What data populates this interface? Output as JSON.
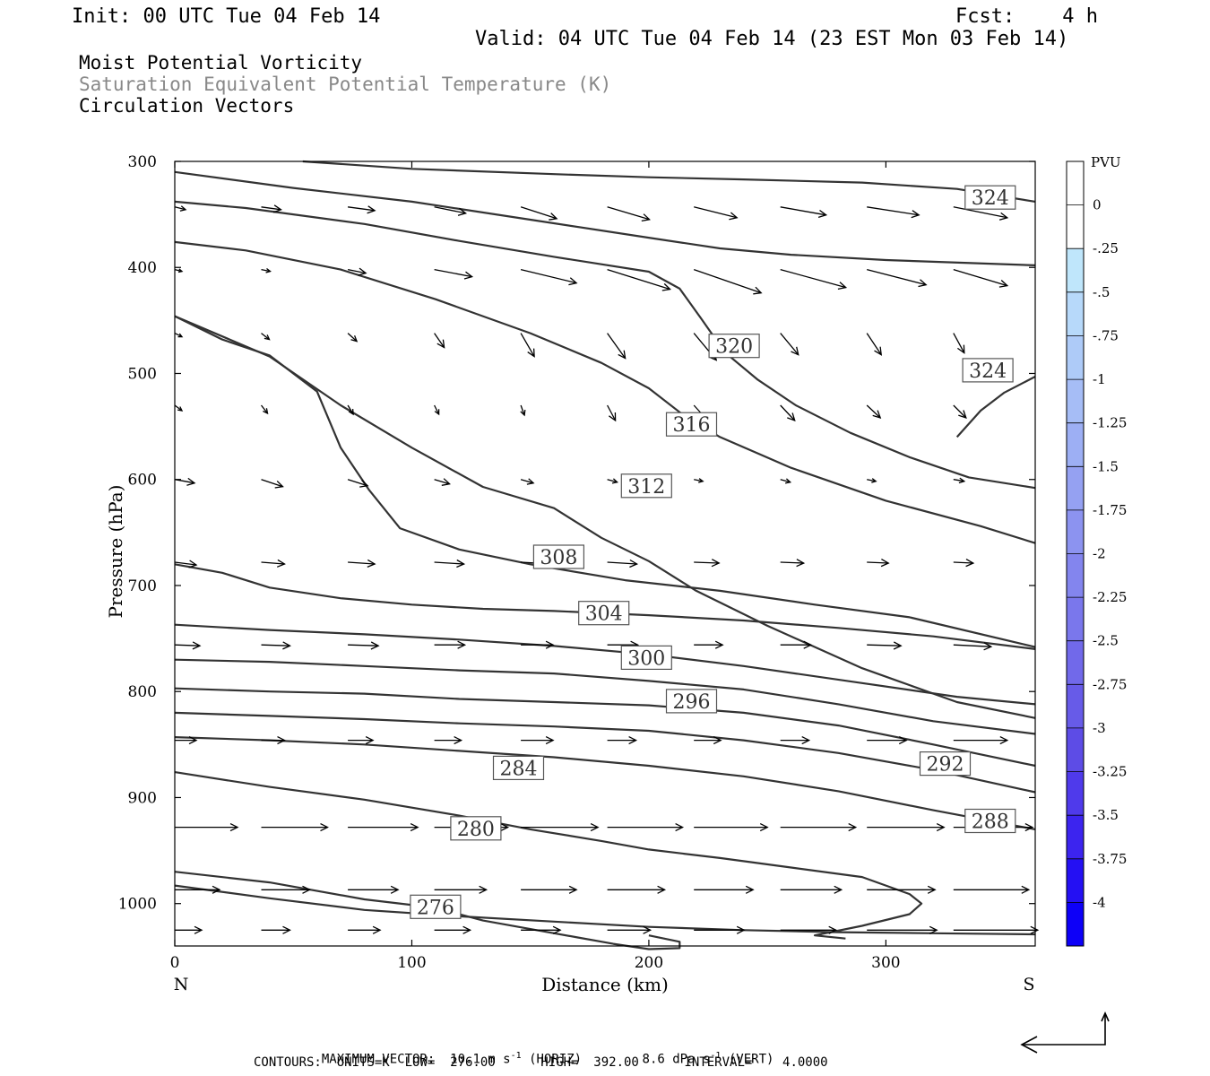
{
  "header": {
    "init": "Init: 00 UTC Tue 04 Feb 14",
    "fcst": "Fcst:    4 h",
    "valid": "Valid: 04 UTC Tue 04 Feb 14 (23 EST Mon 03 Feb 14)"
  },
  "titles": {
    "line1": "Moist Potential Vorticity",
    "line2": "Saturation Equivalent Potential Temperature (K)",
    "line3": "Circulation Vectors"
  },
  "footer": {
    "vector_label": "MAXIMUM VECTOR:",
    "horiz_value": "10.1 m s",
    "horiz_unit_sup": "-1",
    "horiz_tag": "(HORIZ)",
    "vert_value": "8.6 dPa s",
    "vert_unit_sup": "-1",
    "vert_tag": "(VERT)",
    "contours": "CONTOURS:  UNITS=K  LOW=  276.00      HIGH=  392.00      INTERVAL=    4.0000"
  },
  "colors": {
    "contour": "#333333",
    "shade_gray": "#888888",
    "frame": "#000000"
  },
  "chart_data": {
    "type": "cross-section",
    "xlabel": "Distance (km)",
    "ylabel": "Pressure (hPa)",
    "xlim": [
      0,
      363
    ],
    "ylim": [
      1040,
      300
    ],
    "x_ticks": [
      0,
      100,
      200,
      300
    ],
    "y_ticks": [
      300,
      400,
      500,
      600,
      700,
      800,
      900,
      1000
    ],
    "left_end_label": "N",
    "right_end_label": "S",
    "colorbar": {
      "unit": "PVU",
      "labels": [
        "0",
        "-.25",
        "-.5",
        "-.75",
        "-1",
        "-1.25",
        "-1.5",
        "-1.75",
        "-2",
        "-2.25",
        "-2.5",
        "-2.75",
        "-3",
        "-3.25",
        "-3.5",
        "-3.75",
        "-4"
      ],
      "colors": [
        "#ffffff",
        "#ffffff",
        "#bfe6fb",
        "#b7d9fa",
        "#aecbf8",
        "#a6bdf6",
        "#9daff4",
        "#95a1f2",
        "#8c93f0",
        "#8385ee",
        "#7a77ec",
        "#7169ea",
        "#675be8",
        "#5d4ce6",
        "#4f3aeb",
        "#3c24ef",
        "#2410f3",
        "#0d00f8"
      ]
    },
    "contour_labels": [
      {
        "value": "324",
        "x": 344,
        "p": 334
      },
      {
        "value": "320",
        "x": 236,
        "p": 474
      },
      {
        "value": "324",
        "x": 343,
        "p": 497
      },
      {
        "value": "316",
        "x": 218,
        "p": 548
      },
      {
        "value": "312",
        "x": 199,
        "p": 606
      },
      {
        "value": "308",
        "x": 162,
        "p": 673
      },
      {
        "value": "304",
        "x": 181,
        "p": 726
      },
      {
        "value": "300",
        "x": 199,
        "p": 768
      },
      {
        "value": "296",
        "x": 218,
        "p": 809
      },
      {
        "value": "284",
        "x": 145,
        "p": 872
      },
      {
        "value": "292",
        "x": 325,
        "p": 868
      },
      {
        "value": "288",
        "x": 344,
        "p": 922
      },
      {
        "value": "280",
        "x": 127,
        "p": 929
      },
      {
        "value": "276",
        "x": 110,
        "p": 1003
      }
    ],
    "contours": [
      {
        "x": [
          54,
          100,
          160,
          200,
          240,
          290,
          330,
          363
        ],
        "p": [
          300,
          307,
          312,
          315,
          317,
          320,
          326,
          338
        ]
      },
      {
        "x": [
          0,
          50,
          100,
          150,
          200,
          230,
          260,
          300,
          363
        ],
        "p": [
          310,
          325,
          338,
          355,
          372,
          382,
          388,
          393,
          398
        ]
      },
      {
        "x": [
          0,
          30,
          80,
          120,
          160,
          200,
          213,
          222,
          232,
          246,
          262,
          285,
          310,
          335,
          363
        ],
        "p": [
          338,
          344,
          359,
          375,
          390,
          404,
          420,
          448,
          480,
          506,
          530,
          556,
          579,
          598,
          608
        ]
      },
      {
        "x": [
          0,
          30,
          70,
          110,
          150,
          180,
          200,
          215,
          230,
          260,
          300,
          340,
          363
        ],
        "p": [
          376,
          384,
          402,
          430,
          462,
          490,
          514,
          540,
          560,
          589,
          620,
          644,
          660
        ]
      },
      {
        "x": [
          0,
          40,
          70,
          100,
          130,
          160,
          180,
          200,
          220,
          250,
          290,
          330,
          363
        ],
        "p": [
          446,
          484,
          530,
          570,
          607,
          627,
          655,
          677,
          705,
          738,
          778,
          810,
          825
        ]
      },
      {
        "x": [
          0,
          20,
          40,
          60,
          70,
          82,
          95,
          120,
          150,
          190,
          230,
          270,
          310,
          363
        ],
        "p": [
          446,
          468,
          483,
          517,
          570,
          610,
          646,
          666,
          680,
          695,
          705,
          718,
          730,
          758
        ]
      },
      {
        "x": [
          0,
          20,
          40,
          70,
          100,
          130,
          160,
          200,
          240,
          280,
          320,
          363
        ],
        "p": [
          680,
          688,
          702,
          712,
          718,
          722,
          724,
          728,
          733,
          740,
          748,
          760
        ]
      },
      {
        "x": [
          0,
          40,
          80,
          120,
          160,
          200,
          240,
          290,
          330,
          363
        ],
        "p": [
          737,
          742,
          746,
          751,
          757,
          765,
          776,
          792,
          805,
          812
        ]
      },
      {
        "x": [
          0,
          40,
          80,
          120,
          160,
          200,
          240,
          280,
          320,
          363
        ],
        "p": [
          770,
          772,
          776,
          780,
          783,
          790,
          798,
          812,
          828,
          840
        ]
      },
      {
        "x": [
          0,
          40,
          80,
          120,
          160,
          200,
          240,
          280,
          320,
          363
        ],
        "p": [
          797,
          800,
          802,
          807,
          810,
          813,
          820,
          832,
          850,
          870
        ]
      },
      {
        "x": [
          0,
          40,
          80,
          120,
          160,
          200,
          240,
          280,
          320,
          363
        ],
        "p": [
          820,
          823,
          826,
          830,
          833,
          837,
          846,
          858,
          874,
          895
        ]
      },
      {
        "x": [
          0,
          40,
          80,
          120,
          160,
          200,
          240,
          280,
          320,
          363
        ],
        "p": [
          843,
          846,
          850,
          856,
          862,
          870,
          880,
          894,
          912,
          930
        ]
      },
      {
        "x": [
          0,
          40,
          80,
          120,
          150,
          180,
          200,
          230,
          260,
          290,
          300,
          310,
          315,
          310,
          290,
          270,
          283
        ],
        "p": [
          876,
          890,
          902,
          917,
          930,
          941,
          949,
          957,
          966,
          975,
          983,
          991,
          1000,
          1010,
          1021,
          1030,
          1033
        ]
      },
      {
        "x": [
          0,
          40,
          80,
          110,
          130,
          150,
          170,
          185,
          200,
          213,
          213,
          200
        ],
        "p": [
          970,
          980,
          996,
          1004,
          1016,
          1024,
          1032,
          1038,
          1043,
          1042,
          1036,
          1030
        ]
      },
      {
        "x": [
          0,
          40,
          80,
          120,
          160,
          200,
          240,
          280,
          320,
          363
        ],
        "p": [
          983,
          995,
          1006,
          1012,
          1017,
          1022,
          1025,
          1027,
          1028,
          1029
        ]
      },
      {
        "x": [
          330,
          340,
          350,
          363
        ],
        "p": [
          560,
          535,
          518,
          503
        ]
      }
    ],
    "vector_grid": {
      "x": [
        0,
        36.5,
        73,
        109.5,
        146,
        182.5,
        219,
        255.5,
        292,
        328.5
      ],
      "p": [
        343,
        402,
        462,
        530,
        600,
        678,
        756,
        846,
        928,
        987,
        1025
      ]
    },
    "vectors": [
      [
        [
          12,
          -3
        ],
        [
          22,
          -3
        ],
        [
          30,
          -4
        ],
        [
          35,
          -7
        ],
        [
          40,
          -13
        ],
        [
          47,
          -14
        ],
        [
          48,
          -12
        ],
        [
          51,
          -9
        ],
        [
          58,
          -9
        ],
        [
          60,
          -12
        ]
      ],
      [
        [
          8,
          -2
        ],
        [
          10,
          -2
        ],
        [
          20,
          -4
        ],
        [
          42,
          -8
        ],
        [
          62,
          -15
        ],
        [
          70,
          -22
        ],
        [
          75,
          -26
        ],
        [
          73,
          -20
        ],
        [
          66,
          -17
        ],
        [
          60,
          -18
        ]
      ],
      [
        [
          8,
          -4
        ],
        [
          9,
          -7
        ],
        [
          10,
          -9
        ],
        [
          11,
          -16
        ],
        [
          15,
          -26
        ],
        [
          20,
          -28
        ],
        [
          25,
          -30
        ],
        [
          20,
          -24
        ],
        [
          16,
          -24
        ],
        [
          12,
          -22
        ]
      ],
      [
        [
          8,
          -6
        ],
        [
          7,
          -9
        ],
        [
          6,
          -10
        ],
        [
          5,
          -10
        ],
        [
          4,
          -11
        ],
        [
          9,
          -17
        ],
        [
          20,
          -22
        ],
        [
          16,
          -17
        ],
        [
          15,
          -14
        ],
        [
          14,
          -14
        ]
      ],
      [
        [
          22,
          -4
        ],
        [
          24,
          -8
        ],
        [
          22,
          -7
        ],
        [
          17,
          -5
        ],
        [
          14,
          -4
        ],
        [
          11,
          -3
        ],
        [
          10,
          -2
        ],
        [
          11,
          -3
        ],
        [
          10,
          -2
        ],
        [
          12,
          -2
        ]
      ],
      [
        [
          24,
          -3
        ],
        [
          26,
          -2
        ],
        [
          30,
          -2
        ],
        [
          33,
          -2
        ],
        [
          36,
          -2
        ],
        [
          33,
          -2
        ],
        [
          28,
          -1
        ],
        [
          26,
          -1
        ],
        [
          24,
          -1
        ],
        [
          22,
          -1
        ]
      ],
      [
        [
          28,
          -1
        ],
        [
          32,
          -1
        ],
        [
          34,
          -1
        ],
        [
          34,
          0
        ],
        [
          36,
          0
        ],
        [
          34,
          0
        ],
        [
          32,
          0
        ],
        [
          34,
          0
        ],
        [
          38,
          -1
        ],
        [
          42,
          -2
        ]
      ],
      [
        [
          24,
          0
        ],
        [
          26,
          0
        ],
        [
          28,
          0
        ],
        [
          30,
          0
        ],
        [
          36,
          0
        ],
        [
          32,
          0
        ],
        [
          30,
          0
        ],
        [
          32,
          0
        ],
        [
          44,
          0
        ],
        [
          60,
          0
        ]
      ],
      [
        [
          70,
          0
        ],
        [
          74,
          0
        ],
        [
          78,
          0
        ],
        [
          82,
          0
        ],
        [
          86,
          0
        ],
        [
          84,
          0
        ],
        [
          82,
          0
        ],
        [
          84,
          0
        ],
        [
          86,
          0
        ],
        [
          88,
          0
        ]
      ],
      [
        [
          50,
          0
        ],
        [
          54,
          0
        ],
        [
          56,
          0
        ],
        [
          58,
          0
        ],
        [
          62,
          0
        ],
        [
          64,
          0
        ],
        [
          66,
          0
        ],
        [
          68,
          0
        ],
        [
          76,
          0
        ],
        [
          84,
          0
        ]
      ],
      [
        [
          30,
          0
        ],
        [
          32,
          0
        ],
        [
          36,
          0
        ],
        [
          40,
          0
        ],
        [
          44,
          0
        ],
        [
          48,
          0
        ],
        [
          56,
          0
        ],
        [
          62,
          0
        ],
        [
          78,
          0
        ],
        [
          94,
          0
        ]
      ]
    ]
  }
}
